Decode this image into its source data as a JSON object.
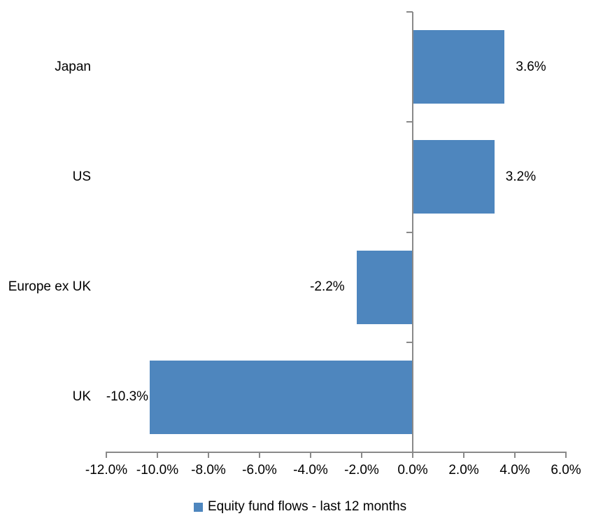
{
  "chart_data": {
    "type": "bar",
    "orientation": "horizontal",
    "categories": [
      "Japan",
      "US",
      "Europe ex UK",
      "UK"
    ],
    "values": [
      3.6,
      3.2,
      -2.2,
      -10.3
    ],
    "data_labels": [
      "3.6%",
      "3.2%",
      "-2.2%",
      "-10.3%"
    ],
    "x_axis": {
      "min": -12,
      "max": 6,
      "step": 2,
      "tick_values": [
        -12,
        -10,
        -8,
        -6,
        -4,
        -2,
        0,
        2,
        4,
        6
      ],
      "tick_labels": [
        "-12.0%",
        "-10.0%",
        "-8.0%",
        "-6.0%",
        "-4.0%",
        "-2.0%",
        "0.0%",
        "2.0%",
        "4.0%",
        "6.0%"
      ]
    },
    "legend": {
      "label": "Equity fund flows - last 12 months",
      "position": "bottom"
    },
    "grid": false,
    "colors": {
      "bar": "#4E86BE",
      "axis": "#898989",
      "text": "#000000",
      "background": "#FFFFFF"
    }
  }
}
